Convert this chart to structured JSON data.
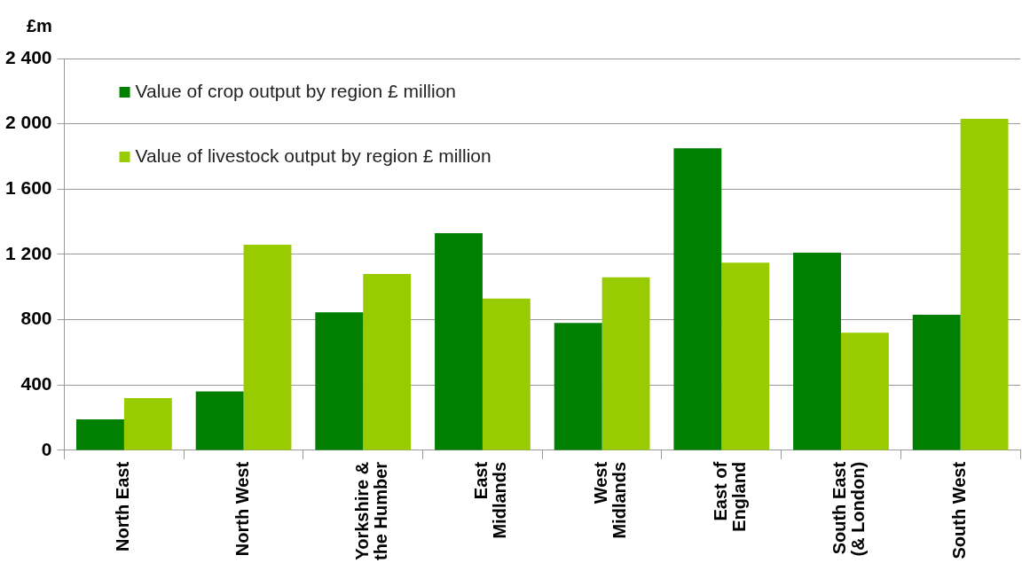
{
  "chart_data": {
    "type": "bar",
    "ylabel": "£m",
    "categories": [
      "North East",
      "North West",
      "Yorkshire &\nthe Humber",
      "East\nMidlands",
      "West\nMidlands",
      "East of\nEngland",
      "South East\n(& London)",
      "South West"
    ],
    "series": [
      {
        "name": "Value of crop output by region £ million",
        "color": "#007f00",
        "values": [
          190,
          360,
          845,
          1330,
          780,
          1850,
          1210,
          830
        ]
      },
      {
        "name": "Value of livestock output by region £ million",
        "color": "#99cc00",
        "values": [
          320,
          1260,
          1080,
          930,
          1060,
          1150,
          720,
          2030
        ]
      }
    ],
    "ylim": [
      0,
      2400
    ],
    "yticks": [
      0,
      400,
      800,
      {
        "value": 1200,
        "label": "1 200"
      },
      {
        "value": 1600,
        "label": "1 600"
      },
      {
        "value": 2000,
        "label": "2 000"
      },
      {
        "value": 2400,
        "label": "2 400"
      }
    ],
    "grid": "y",
    "legend": "top left"
  }
}
